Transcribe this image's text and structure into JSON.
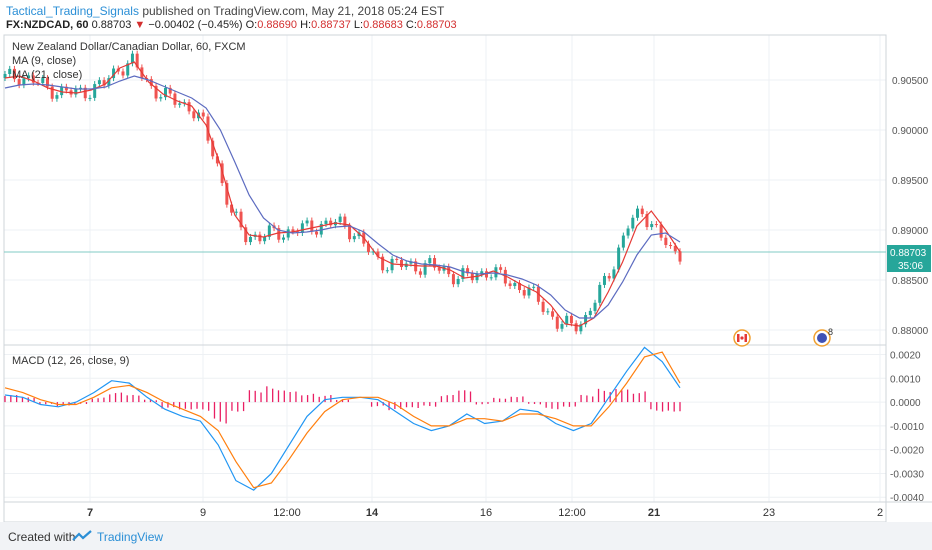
{
  "header": {
    "author": "Tactical_Trading_Signals",
    "published_text": "published on TradingView.com, May 21, 2018 05:24 EST",
    "symbol": "FX:NZDCAD, 60",
    "last": "0.88703",
    "change": "−0.00402 (−0.45%)",
    "open_label": "O:",
    "open": "0.88690",
    "high_label": "H:",
    "high": "0.88737",
    "low_label": "L:",
    "low": "0.88683",
    "close_label": "C:",
    "close": "0.88703"
  },
  "chart_data": [
    {
      "type": "line",
      "title": "New Zealand Dollar/Canadian Dollar, 60, FXCM",
      "ylim": [
        0.8785,
        0.9095
      ],
      "y_ticks": [
        "0.90500",
        "0.90000",
        "0.89500",
        "0.89000",
        "0.88500",
        "0.88000"
      ],
      "x_ticks": [
        "7",
        "9",
        "12:00",
        "14",
        "16",
        "12:00",
        "21",
        "23",
        "2"
      ],
      "last_price_label": "0.88703",
      "countdown_label": "35:06",
      "event_badge_count": "8",
      "series": [
        {
          "name": "MA (9, close)",
          "color": "#e53935",
          "values": [
            0.9052,
            0.9054,
            0.9049,
            0.9042,
            0.9038,
            0.9037,
            0.904,
            0.9046,
            0.9062,
            0.9068,
            0.9048,
            0.9036,
            0.9029,
            0.9024,
            0.9005,
            0.8965,
            0.8915,
            0.8895,
            0.8893,
            0.8897,
            0.8898,
            0.8901,
            0.8904,
            0.8907,
            0.8905,
            0.8892,
            0.8873,
            0.8866,
            0.8865,
            0.8864,
            0.8864,
            0.886,
            0.8852,
            0.8854,
            0.8859,
            0.8853,
            0.8845,
            0.8838,
            0.8825,
            0.8806,
            0.8804,
            0.8812,
            0.8838,
            0.8868,
            0.8904,
            0.8919,
            0.89,
            0.8878
          ]
        },
        {
          "name": "MA (21, close)",
          "color": "#5c6bc0",
          "values": [
            0.9042,
            0.9045,
            0.9046,
            0.9045,
            0.9043,
            0.9041,
            0.9041,
            0.9043,
            0.9049,
            0.9054,
            0.905,
            0.9044,
            0.9038,
            0.9032,
            0.9022,
            0.9,
            0.8968,
            0.8935,
            0.8912,
            0.89,
            0.8897,
            0.8898,
            0.89,
            0.8903,
            0.8904,
            0.8898,
            0.8886,
            0.8875,
            0.8869,
            0.8866,
            0.8865,
            0.8863,
            0.8858,
            0.8856,
            0.8857,
            0.8855,
            0.8851,
            0.8845,
            0.8835,
            0.882,
            0.8812,
            0.8812,
            0.8825,
            0.8848,
            0.8875,
            0.8895,
            0.8897,
            0.8888
          ]
        }
      ]
    },
    {
      "type": "line",
      "title": "MACD (12, 26, close, 9)",
      "ylim": [
        -0.0042,
        0.0024
      ],
      "y_ticks": [
        "0.0020",
        "0.0010",
        "0.0000",
        "-0.0010",
        "-0.0020",
        "-0.0030",
        "-0.0040"
      ],
      "series": [
        {
          "name": "MACD",
          "color": "#2196f3",
          "values": [
            0.0003,
            0.0002,
            -0.0001,
            -0.0002,
            0.0,
            0.0004,
            0.0009,
            0.0008,
            0.0002,
            -0.0003,
            -0.0006,
            -0.0008,
            -0.0018,
            -0.0033,
            -0.0037,
            -0.003,
            -0.0018,
            -0.0006,
            0.0001,
            0.0002,
            0.0002,
            0.0001,
            -0.0004,
            -0.0009,
            -0.0012,
            -0.001,
            -0.0005,
            -0.0009,
            -0.0008,
            -0.0003,
            -0.0004,
            -0.0009,
            -0.0012,
            -0.0009,
            0.0002,
            0.0013,
            0.0023,
            0.0017,
            0.0006
          ]
        },
        {
          "name": "Signal",
          "color": "#ff7f0e",
          "values": [
            0.0006,
            0.0004,
            0.0001,
            -0.0001,
            -0.0001,
            0.0002,
            0.0006,
            0.0007,
            0.0004,
            0.0,
            -0.0003,
            -0.0006,
            -0.0012,
            -0.0025,
            -0.0036,
            -0.0034,
            -0.0024,
            -0.0013,
            -0.0004,
            0.0001,
            0.0002,
            0.0002,
            -0.0001,
            -0.0006,
            -0.001,
            -0.001,
            -0.0007,
            -0.0007,
            -0.0008,
            -0.0005,
            -0.0005,
            -0.0007,
            -0.001,
            -0.001,
            -0.0002,
            0.0008,
            0.0019,
            0.0021,
            0.0008
          ]
        },
        {
          "name": "Histogram",
          "color": "#e91e63",
          "values": [
            0.0003,
            0.0002,
            -0.0001,
            -0.0002,
            -0.0001,
            0.0002,
            0.0004,
            0.0003,
            0.0001,
            -0.0003,
            -0.0004,
            -0.0004,
            -0.0009,
            -0.0004,
            0.0005,
            0.0007,
            0.0006,
            0.0004,
            0.0003,
            0.0001,
            0.0,
            -0.0002,
            -0.0004,
            -0.0003,
            -0.0002,
            0.0003,
            0.0005,
            -0.0001,
            0.0002,
            0.0003,
            -0.0001,
            -0.0003,
            -0.0002,
            0.0003,
            0.0006,
            0.0007,
            0.0005,
            -0.0004,
            -0.0004
          ]
        }
      ]
    }
  ],
  "footer": {
    "created_with": "Created with",
    "brand": "TradingView"
  }
}
